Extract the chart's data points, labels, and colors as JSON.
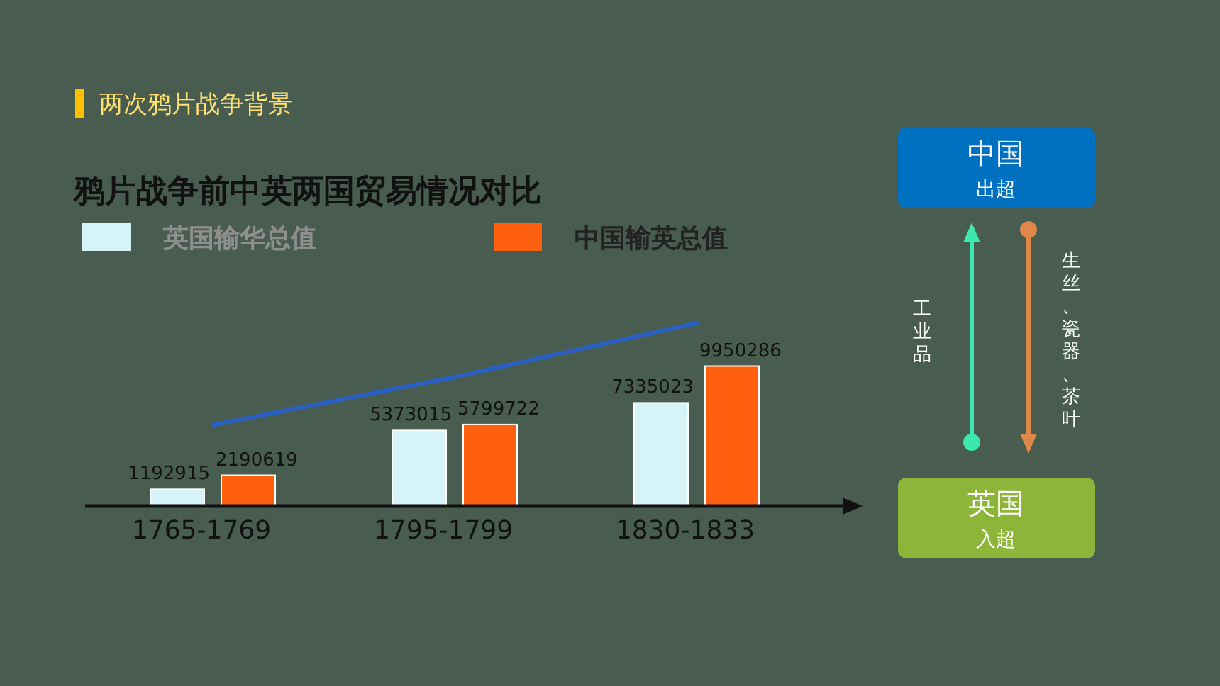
{
  "chart_data": [
    {
      "type": "bar",
      "title": "鸦片战争前中英两国贸易情况对比",
      "annotations": [
        "两次鸦片战争背景"
      ],
      "legend": "top",
      "categories": [
        "1765-1769",
        "1795-1799",
        "1830-1833"
      ],
      "series": [
        {
          "name": "英国输华总值",
          "color": "#d6f3f8",
          "values": [
            1192915,
            5373015,
            7335023
          ],
          "value_labels": [
            "1192915",
            "5373015",
            "7335023"
          ]
        },
        {
          "name": "中国输英总值",
          "color": "#ff6010",
          "values": [
            2190619,
            5799722,
            9950286
          ],
          "value_labels": [
            "2190619",
            "5799722",
            "9950286"
          ]
        },
        {
          "type": "line",
          "color": "#2a5fc4",
          "values": [
            5760000,
            9170000,
            13000000
          ]
        }
      ]
    },
    {
      "type": "other",
      "annotations": [
        "中国",
        "出超",
        "工业品",
        "生丝、瓷器、茶叶",
        "英国",
        "入超"
      ]
    }
  ]
}
